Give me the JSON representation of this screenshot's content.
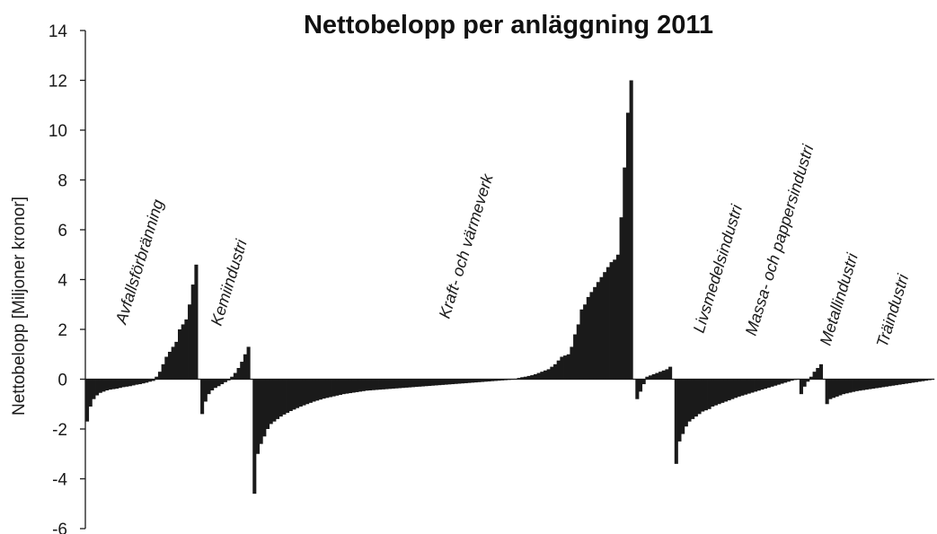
{
  "chart_data": {
    "type": "bar",
    "title": "Nettobelopp per anläggning 2011",
    "xlabel": "",
    "ylabel": "Nettobelopp [Miljoner kronor]",
    "ylim": [
      -6,
      14
    ],
    "yticks": [
      -6,
      -4,
      -2,
      0,
      2,
      4,
      6,
      8,
      10,
      12,
      14
    ],
    "bar_color": "#1a1a1a",
    "grid": false,
    "legend": "none",
    "sorted_ascending_within_group": true,
    "groups": [
      {
        "name": "Avfallsförbränning",
        "values": [
          -1.7,
          -1.1,
          -0.8,
          -0.65,
          -0.55,
          -0.5,
          -0.45,
          -0.42,
          -0.4,
          -0.38,
          -0.35,
          -0.32,
          -0.3,
          -0.28,
          -0.25,
          -0.22,
          -0.2,
          -0.17,
          -0.14,
          -0.1,
          -0.07,
          0.1,
          0.3,
          0.6,
          0.9,
          1.1,
          1.3,
          1.5,
          2.0,
          2.2,
          2.4,
          3.0,
          3.8,
          4.6
        ]
      },
      {
        "name": "Kemiindustri",
        "values": [
          -1.4,
          -0.9,
          -0.6,
          -0.45,
          -0.35,
          -0.28,
          -0.2,
          -0.12,
          -0.05,
          0.1,
          0.25,
          0.45,
          0.7,
          1.0,
          1.3
        ]
      },
      {
        "name": "Kraft- och värmeverk",
        "values": [
          -4.6,
          -3.0,
          -2.6,
          -2.3,
          -2.0,
          -1.8,
          -1.7,
          -1.6,
          -1.5,
          -1.42,
          -1.35,
          -1.28,
          -1.22,
          -1.16,
          -1.1,
          -1.05,
          -1.0,
          -0.95,
          -0.9,
          -0.86,
          -0.82,
          -0.78,
          -0.75,
          -0.72,
          -0.69,
          -0.66,
          -0.63,
          -0.6,
          -0.58,
          -0.56,
          -0.54,
          -0.52,
          -0.5,
          -0.48,
          -0.46,
          -0.45,
          -0.44,
          -0.43,
          -0.42,
          -0.41,
          -0.4,
          -0.39,
          -0.38,
          -0.37,
          -0.36,
          -0.35,
          -0.34,
          -0.33,
          -0.32,
          -0.31,
          -0.3,
          -0.29,
          -0.28,
          -0.27,
          -0.26,
          -0.25,
          -0.24,
          -0.23,
          -0.22,
          -0.21,
          -0.2,
          -0.19,
          -0.18,
          -0.17,
          -0.16,
          -0.15,
          -0.14,
          -0.13,
          -0.12,
          -0.11,
          -0.1,
          -0.09,
          -0.08,
          -0.07,
          -0.06,
          -0.05,
          -0.04,
          -0.03,
          -0.02,
          0.02,
          0.05,
          0.08,
          0.1,
          0.13,
          0.16,
          0.2,
          0.25,
          0.3,
          0.35,
          0.4,
          0.5,
          0.6,
          0.75,
          0.9,
          0.95,
          1.0,
          1.3,
          1.8,
          2.2,
          2.8,
          3.0,
          3.3,
          3.5,
          3.7,
          3.9,
          4.1,
          4.3,
          4.5,
          4.7,
          4.8,
          5.0,
          6.5,
          8.5,
          10.7,
          12.0
        ]
      },
      {
        "name": "Livsmedelsindustri",
        "values": [
          -0.8,
          -0.5,
          -0.2,
          0.1,
          0.15,
          0.2,
          0.25,
          0.3,
          0.35,
          0.4,
          0.5
        ]
      },
      {
        "name": "Massa- och pappersindustri",
        "values": [
          -3.4,
          -2.5,
          -2.2,
          -1.9,
          -1.7,
          -1.6,
          -1.5,
          -1.4,
          -1.3,
          -1.25,
          -1.2,
          -1.1,
          -1.05,
          -1.0,
          -0.95,
          -0.9,
          -0.85,
          -0.8,
          -0.75,
          -0.7,
          -0.66,
          -0.62,
          -0.58,
          -0.54,
          -0.5,
          -0.46,
          -0.42,
          -0.38,
          -0.34,
          -0.3,
          -0.26,
          -0.22,
          -0.18,
          -0.14,
          -0.1,
          -0.06,
          -0.03
        ]
      },
      {
        "name": "Metallindustri",
        "values": [
          -0.6,
          -0.3,
          -0.1,
          0.1,
          0.3,
          0.45,
          0.6
        ]
      },
      {
        "name": "Träindustri",
        "values": [
          -1.0,
          -0.8,
          -0.75,
          -0.7,
          -0.65,
          -0.6,
          -0.57,
          -0.54,
          -0.51,
          -0.48,
          -0.46,
          -0.44,
          -0.42,
          -0.4,
          -0.38,
          -0.36,
          -0.34,
          -0.32,
          -0.3,
          -0.28,
          -0.26,
          -0.24,
          -0.22,
          -0.2,
          -0.18,
          -0.16,
          -0.14,
          -0.12,
          -0.1,
          -0.08,
          -0.06,
          -0.04,
          -0.02
        ]
      }
    ]
  }
}
